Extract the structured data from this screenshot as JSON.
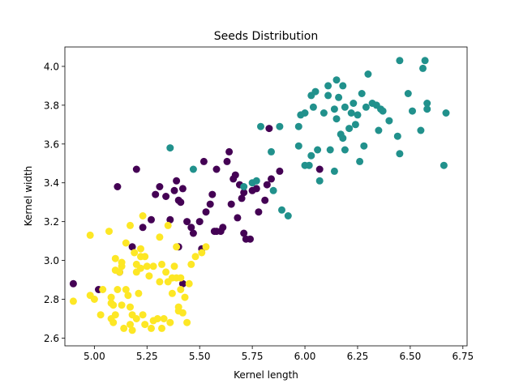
{
  "chart_data": {
    "type": "scatter",
    "title": "Seeds Distribution",
    "xlabel": "Kernel length",
    "ylabel": "Kernel width",
    "xlim": [
      4.86,
      6.77
    ],
    "ylim": [
      2.56,
      4.1
    ],
    "xticks": [
      "5.00",
      "5.25",
      "5.50",
      "5.75",
      "6.00",
      "6.25",
      "6.50",
      "6.75"
    ],
    "yticks": [
      "2.6",
      "2.8",
      "3.0",
      "3.2",
      "3.4",
      "3.6",
      "3.8",
      "4.0"
    ],
    "grid": false,
    "legend": "none",
    "series": [
      {
        "color": "#440154",
        "points": [
          [
            4.9,
            2.88
          ],
          [
            5.02,
            2.85
          ],
          [
            5.12,
            2.94
          ],
          [
            5.11,
            3.38
          ],
          [
            5.18,
            3.07
          ],
          [
            5.2,
            3.47
          ],
          [
            5.23,
            3.17
          ],
          [
            5.27,
            3.21
          ],
          [
            5.29,
            3.34
          ],
          [
            5.31,
            3.38
          ],
          [
            5.34,
            3.33
          ],
          [
            5.36,
            3.21
          ],
          [
            5.39,
            3.41
          ],
          [
            5.38,
            3.36
          ],
          [
            5.4,
            3.31
          ],
          [
            5.41,
            3.3
          ],
          [
            5.42,
            3.37
          ],
          [
            5.4,
            3.07
          ],
          [
            5.42,
            2.88
          ],
          [
            5.44,
            3.2
          ],
          [
            5.46,
            3.17
          ],
          [
            5.47,
            3.14
          ],
          [
            5.5,
            3.2
          ],
          [
            5.51,
            3.06
          ],
          [
            5.52,
            3.51
          ],
          [
            5.53,
            3.25
          ],
          [
            5.55,
            3.29
          ],
          [
            5.56,
            3.34
          ],
          [
            5.57,
            3.15
          ],
          [
            5.58,
            3.47
          ],
          [
            5.58,
            3.15
          ],
          [
            5.6,
            3.15
          ],
          [
            5.61,
            3.17
          ],
          [
            5.63,
            3.51
          ],
          [
            5.64,
            3.56
          ],
          [
            5.65,
            3.29
          ],
          [
            5.66,
            3.42
          ],
          [
            5.67,
            3.44
          ],
          [
            5.68,
            3.22
          ],
          [
            5.69,
            3.39
          ],
          [
            5.7,
            3.32
          ],
          [
            5.71,
            3.35
          ],
          [
            5.71,
            3.14
          ],
          [
            5.72,
            3.11
          ],
          [
            5.74,
            3.11
          ],
          [
            5.75,
            3.36
          ],
          [
            5.77,
            3.37
          ],
          [
            5.78,
            3.25
          ],
          [
            5.81,
            3.31
          ],
          [
            5.82,
            3.39
          ],
          [
            5.83,
            3.68
          ],
          [
            5.84,
            3.42
          ],
          [
            5.88,
            3.46
          ],
          [
            6.07,
            3.47
          ]
        ]
      },
      {
        "color": "#21918c",
        "points": [
          [
            5.36,
            3.58
          ],
          [
            5.47,
            3.47
          ],
          [
            5.71,
            3.38
          ],
          [
            5.75,
            3.4
          ],
          [
            5.77,
            3.41
          ],
          [
            5.79,
            3.69
          ],
          [
            5.84,
            3.56
          ],
          [
            5.85,
            3.36
          ],
          [
            5.88,
            3.69
          ],
          [
            5.89,
            3.26
          ],
          [
            5.92,
            3.23
          ],
          [
            5.97,
            3.69
          ],
          [
            5.97,
            3.59
          ],
          [
            5.98,
            3.75
          ],
          [
            6.0,
            3.76
          ],
          [
            6.0,
            3.49
          ],
          [
            6.02,
            3.49
          ],
          [
            6.03,
            3.54
          ],
          [
            6.03,
            3.85
          ],
          [
            6.04,
            3.79
          ],
          [
            6.05,
            3.87
          ],
          [
            6.06,
            3.57
          ],
          [
            6.07,
            3.41
          ],
          [
            6.09,
            3.76
          ],
          [
            6.11,
            3.9
          ],
          [
            6.11,
            3.85
          ],
          [
            6.12,
            3.57
          ],
          [
            6.14,
            3.78
          ],
          [
            6.14,
            3.46
          ],
          [
            6.15,
            3.93
          ],
          [
            6.15,
            3.73
          ],
          [
            6.16,
            3.84
          ],
          [
            6.17,
            3.65
          ],
          [
            6.18,
            3.63
          ],
          [
            6.18,
            3.9
          ],
          [
            6.19,
            3.79
          ],
          [
            6.19,
            3.57
          ],
          [
            6.21,
            3.68
          ],
          [
            6.22,
            3.76
          ],
          [
            6.23,
            3.81
          ],
          [
            6.24,
            3.7
          ],
          [
            6.25,
            3.75
          ],
          [
            6.26,
            3.51
          ],
          [
            6.27,
            3.86
          ],
          [
            6.28,
            3.59
          ],
          [
            6.29,
            3.79
          ],
          [
            6.3,
            3.96
          ],
          [
            6.32,
            3.81
          ],
          [
            6.34,
            3.8
          ],
          [
            6.35,
            3.67
          ],
          [
            6.36,
            3.78
          ],
          [
            6.37,
            3.77
          ],
          [
            6.4,
            3.72
          ],
          [
            6.44,
            3.64
          ],
          [
            6.45,
            4.03
          ],
          [
            6.45,
            3.55
          ],
          [
            6.49,
            3.86
          ],
          [
            6.51,
            3.77
          ],
          [
            6.55,
            3.67
          ],
          [
            6.56,
            3.99
          ],
          [
            6.57,
            4.03
          ],
          [
            6.58,
            3.81
          ],
          [
            6.58,
            3.78
          ],
          [
            6.66,
            3.49
          ],
          [
            6.67,
            3.76
          ]
        ]
      },
      {
        "color": "#fde725",
        "points": [
          [
            4.9,
            2.79
          ],
          [
            4.98,
            3.13
          ],
          [
            4.98,
            2.82
          ],
          [
            5.0,
            2.8
          ],
          [
            5.03,
            2.72
          ],
          [
            5.04,
            2.85
          ],
          [
            5.07,
            3.15
          ],
          [
            5.08,
            2.81
          ],
          [
            5.08,
            2.78
          ],
          [
            5.08,
            2.7
          ],
          [
            5.09,
            2.77
          ],
          [
            5.09,
            2.68
          ],
          [
            5.1,
            2.72
          ],
          [
            5.1,
            3.01
          ],
          [
            5.1,
            2.95
          ],
          [
            5.11,
            2.85
          ],
          [
            5.12,
            2.94
          ],
          [
            5.13,
            2.97
          ],
          [
            5.13,
            2.99
          ],
          [
            5.13,
            2.77
          ],
          [
            5.14,
            2.65
          ],
          [
            5.15,
            3.09
          ],
          [
            5.15,
            2.85
          ],
          [
            5.16,
            2.82
          ],
          [
            5.17,
            2.76
          ],
          [
            5.17,
            3.18
          ],
          [
            5.17,
            2.67
          ],
          [
            5.18,
            2.72
          ],
          [
            5.18,
            2.64
          ],
          [
            5.19,
            3.04
          ],
          [
            5.2,
            2.98
          ],
          [
            5.2,
            2.94
          ],
          [
            5.2,
            2.7
          ],
          [
            5.21,
            2.83
          ],
          [
            5.22,
            3.06
          ],
          [
            5.22,
            3.02
          ],
          [
            5.22,
            2.96
          ],
          [
            5.23,
            2.72
          ],
          [
            5.23,
            3.23
          ],
          [
            5.24,
            3.02
          ],
          [
            5.24,
            2.67
          ],
          [
            5.25,
            2.97
          ],
          [
            5.26,
            2.92
          ],
          [
            5.27,
            2.65
          ],
          [
            5.28,
            2.97
          ],
          [
            5.28,
            2.69
          ],
          [
            5.3,
            2.7
          ],
          [
            5.31,
            2.89
          ],
          [
            5.31,
            3.12
          ],
          [
            5.32,
            2.65
          ],
          [
            5.32,
            2.98
          ],
          [
            5.33,
            2.7
          ],
          [
            5.34,
            2.94
          ],
          [
            5.35,
            2.89
          ],
          [
            5.35,
            3.18
          ],
          [
            5.36,
            2.68
          ],
          [
            5.37,
            2.83
          ],
          [
            5.37,
            2.91
          ],
          [
            5.38,
            2.97
          ],
          [
            5.39,
            3.07
          ],
          [
            5.39,
            2.91
          ],
          [
            5.4,
            2.76
          ],
          [
            5.4,
            2.74
          ],
          [
            5.41,
            2.91
          ],
          [
            5.41,
            2.85
          ],
          [
            5.42,
            2.73
          ],
          [
            5.43,
            2.81
          ],
          [
            5.44,
            2.68
          ],
          [
            5.45,
            2.88
          ],
          [
            5.46,
            2.98
          ],
          [
            5.48,
            3.02
          ],
          [
            5.51,
            3.04
          ],
          [
            5.53,
            3.07
          ]
        ]
      }
    ]
  }
}
